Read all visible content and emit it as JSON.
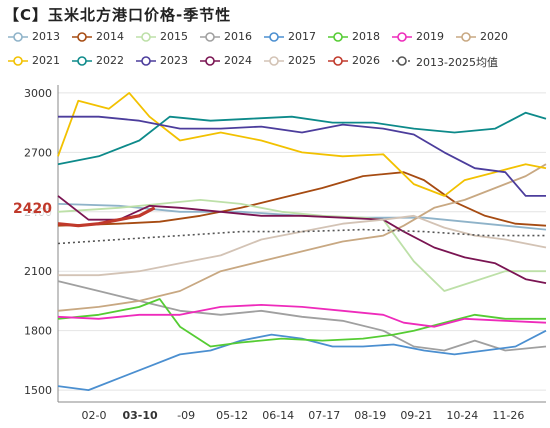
{
  "title": "【C】玉米北方港口价格-季节性",
  "colors": {
    "2013": "#8fb3c9",
    "2014": "#a64b12",
    "2015": "#bde0a8",
    "2016": "#a0a0a0",
    "2017": "#4b8fd0",
    "2018": "#55cc33",
    "2019": "#ee2bbb",
    "2020": "#c8a882",
    "2021": "#f2c100",
    "2022": "#0d8a8a",
    "2023": "#4c3d9c",
    "2024": "#7a1452",
    "2025": "#d3c3b5",
    "2026": "#c0392b",
    "2013-2025均值": "#555555"
  },
  "highlights": {
    "value_label": "2420",
    "date_label": "03-10"
  },
  "chart_data": {
    "type": "line",
    "x_ticks": [
      "02-0",
      "03-10",
      "-09",
      "05-12",
      "06-14",
      "07-17",
      "08-19",
      "09-21",
      "10-24",
      "11-26"
    ],
    "y_ticks": [
      1500,
      1800,
      2100,
      2400,
      2700,
      3000
    ],
    "ylim": [
      1450,
      3040
    ],
    "x_domain": [
      0,
      48
    ],
    "grid": true,
    "legend_position": "top",
    "series": [
      {
        "name": "2013",
        "style": "solid",
        "points": [
          [
            0,
            2440
          ],
          [
            6,
            2430
          ],
          [
            12,
            2400
          ],
          [
            18,
            2400
          ],
          [
            24,
            2380
          ],
          [
            30,
            2370
          ],
          [
            36,
            2370
          ],
          [
            40,
            2350
          ],
          [
            44,
            2330
          ],
          [
            48,
            2310
          ]
        ]
      },
      {
        "name": "2014",
        "style": "solid",
        "points": [
          [
            0,
            2330
          ],
          [
            6,
            2340
          ],
          [
            10,
            2350
          ],
          [
            14,
            2380
          ],
          [
            18,
            2420
          ],
          [
            22,
            2470
          ],
          [
            26,
            2520
          ],
          [
            30,
            2580
          ],
          [
            34,
            2600
          ],
          [
            36,
            2560
          ],
          [
            39,
            2450
          ],
          [
            42,
            2380
          ],
          [
            45,
            2340
          ],
          [
            48,
            2330
          ]
        ]
      },
      {
        "name": "2015",
        "style": "solid",
        "points": [
          [
            0,
            2400
          ],
          [
            6,
            2420
          ],
          [
            10,
            2440
          ],
          [
            14,
            2460
          ],
          [
            18,
            2440
          ],
          [
            22,
            2400
          ],
          [
            26,
            2380
          ],
          [
            30,
            2370
          ],
          [
            32,
            2360
          ],
          [
            35,
            2150
          ],
          [
            38,
            2000
          ],
          [
            41,
            2050
          ],
          [
            44,
            2100
          ],
          [
            48,
            2100
          ]
        ]
      },
      {
        "name": "2016",
        "style": "solid",
        "points": [
          [
            0,
            2050
          ],
          [
            4,
            2000
          ],
          [
            8,
            1950
          ],
          [
            12,
            1900
          ],
          [
            16,
            1880
          ],
          [
            20,
            1900
          ],
          [
            24,
            1870
          ],
          [
            28,
            1850
          ],
          [
            32,
            1800
          ],
          [
            35,
            1720
          ],
          [
            38,
            1700
          ],
          [
            41,
            1750
          ],
          [
            44,
            1700
          ],
          [
            48,
            1720
          ]
        ]
      },
      {
        "name": "2017",
        "style": "solid",
        "points": [
          [
            0,
            1520
          ],
          [
            3,
            1500
          ],
          [
            6,
            1560
          ],
          [
            9,
            1620
          ],
          [
            12,
            1680
          ],
          [
            15,
            1700
          ],
          [
            18,
            1750
          ],
          [
            21,
            1780
          ],
          [
            24,
            1760
          ],
          [
            27,
            1720
          ],
          [
            30,
            1720
          ],
          [
            33,
            1730
          ],
          [
            36,
            1700
          ],
          [
            39,
            1680
          ],
          [
            42,
            1700
          ],
          [
            45,
            1720
          ],
          [
            48,
            1800
          ]
        ]
      },
      {
        "name": "2018",
        "style": "solid",
        "points": [
          [
            0,
            1860
          ],
          [
            4,
            1880
          ],
          [
            8,
            1920
          ],
          [
            10,
            1960
          ],
          [
            12,
            1820
          ],
          [
            15,
            1720
          ],
          [
            18,
            1740
          ],
          [
            22,
            1760
          ],
          [
            26,
            1750
          ],
          [
            30,
            1760
          ],
          [
            33,
            1780
          ],
          [
            35,
            1800
          ],
          [
            38,
            1840
          ],
          [
            41,
            1880
          ],
          [
            44,
            1860
          ],
          [
            48,
            1860
          ]
        ]
      },
      {
        "name": "2019",
        "style": "solid",
        "points": [
          [
            0,
            1870
          ],
          [
            4,
            1860
          ],
          [
            8,
            1880
          ],
          [
            12,
            1880
          ],
          [
            16,
            1920
          ],
          [
            20,
            1930
          ],
          [
            24,
            1920
          ],
          [
            28,
            1900
          ],
          [
            32,
            1880
          ],
          [
            34,
            1840
          ],
          [
            37,
            1820
          ],
          [
            40,
            1860
          ],
          [
            44,
            1850
          ],
          [
            48,
            1840
          ]
        ]
      },
      {
        "name": "2020",
        "style": "solid",
        "points": [
          [
            0,
            1900
          ],
          [
            4,
            1920
          ],
          [
            8,
            1950
          ],
          [
            12,
            2000
          ],
          [
            16,
            2100
          ],
          [
            20,
            2150
          ],
          [
            24,
            2200
          ],
          [
            28,
            2250
          ],
          [
            32,
            2280
          ],
          [
            34,
            2330
          ],
          [
            37,
            2420
          ],
          [
            40,
            2460
          ],
          [
            43,
            2520
          ],
          [
            46,
            2580
          ],
          [
            48,
            2640
          ]
        ]
      },
      {
        "name": "2021",
        "style": "solid",
        "points": [
          [
            0,
            2680
          ],
          [
            2,
            2960
          ],
          [
            5,
            2920
          ],
          [
            7,
            3000
          ],
          [
            9,
            2880
          ],
          [
            12,
            2760
          ],
          [
            16,
            2800
          ],
          [
            20,
            2760
          ],
          [
            24,
            2700
          ],
          [
            28,
            2680
          ],
          [
            32,
            2690
          ],
          [
            35,
            2540
          ],
          [
            38,
            2480
          ],
          [
            40,
            2560
          ],
          [
            43,
            2600
          ],
          [
            46,
            2640
          ],
          [
            48,
            2620
          ]
        ]
      },
      {
        "name": "2022",
        "style": "solid",
        "points": [
          [
            0,
            2640
          ],
          [
            4,
            2680
          ],
          [
            8,
            2760
          ],
          [
            11,
            2880
          ],
          [
            15,
            2860
          ],
          [
            19,
            2870
          ],
          [
            23,
            2880
          ],
          [
            27,
            2850
          ],
          [
            31,
            2850
          ],
          [
            35,
            2820
          ],
          [
            39,
            2800
          ],
          [
            43,
            2820
          ],
          [
            46,
            2900
          ],
          [
            48,
            2870
          ]
        ]
      },
      {
        "name": "2023",
        "style": "solid",
        "points": [
          [
            0,
            2880
          ],
          [
            4,
            2880
          ],
          [
            8,
            2860
          ],
          [
            12,
            2820
          ],
          [
            16,
            2820
          ],
          [
            20,
            2830
          ],
          [
            24,
            2800
          ],
          [
            28,
            2840
          ],
          [
            32,
            2820
          ],
          [
            35,
            2790
          ],
          [
            38,
            2700
          ],
          [
            41,
            2620
          ],
          [
            44,
            2600
          ],
          [
            46,
            2480
          ],
          [
            48,
            2480
          ]
        ]
      },
      {
        "name": "2024",
        "style": "solid",
        "points": [
          [
            0,
            2480
          ],
          [
            3,
            2360
          ],
          [
            6,
            2360
          ],
          [
            9,
            2430
          ],
          [
            12,
            2420
          ],
          [
            16,
            2400
          ],
          [
            20,
            2380
          ],
          [
            24,
            2380
          ],
          [
            28,
            2370
          ],
          [
            32,
            2360
          ],
          [
            34,
            2300
          ],
          [
            37,
            2220
          ],
          [
            40,
            2170
          ],
          [
            43,
            2140
          ],
          [
            46,
            2060
          ],
          [
            48,
            2040
          ]
        ]
      },
      {
        "name": "2025",
        "style": "solid",
        "points": [
          [
            0,
            2080
          ],
          [
            4,
            2080
          ],
          [
            8,
            2100
          ],
          [
            12,
            2140
          ],
          [
            16,
            2180
          ],
          [
            20,
            2260
          ],
          [
            24,
            2300
          ],
          [
            28,
            2340
          ],
          [
            32,
            2360
          ],
          [
            35,
            2380
          ],
          [
            38,
            2320
          ],
          [
            41,
            2280
          ],
          [
            44,
            2260
          ],
          [
            48,
            2220
          ]
        ]
      },
      {
        "name": "2026",
        "style": "solid",
        "points": [
          [
            0,
            2340
          ],
          [
            2,
            2330
          ],
          [
            4,
            2340
          ],
          [
            6,
            2360
          ],
          [
            8,
            2380
          ],
          [
            9.5,
            2420
          ]
        ]
      },
      {
        "name": "2013-2025均值",
        "style": "dotted",
        "points": [
          [
            0,
            2240
          ],
          [
            6,
            2260
          ],
          [
            12,
            2280
          ],
          [
            18,
            2300
          ],
          [
            24,
            2300
          ],
          [
            30,
            2310
          ],
          [
            36,
            2300
          ],
          [
            42,
            2280
          ],
          [
            48,
            2280
          ]
        ]
      }
    ]
  },
  "legend": [
    {
      "name": "2013",
      "label": "2013"
    },
    {
      "name": "2014",
      "label": "2014"
    },
    {
      "name": "2015",
      "label": "2015"
    },
    {
      "name": "2016",
      "label": "2016"
    },
    {
      "name": "2017",
      "label": "2017"
    },
    {
      "name": "2018",
      "label": "2018"
    },
    {
      "name": "2019",
      "label": "2019"
    },
    {
      "name": "2020",
      "label": "2020"
    },
    {
      "name": "2021",
      "label": "2021"
    },
    {
      "name": "2022",
      "label": "2022"
    },
    {
      "name": "2023",
      "label": "2023"
    },
    {
      "name": "2024",
      "label": "2024"
    },
    {
      "name": "2025",
      "label": "2025"
    },
    {
      "name": "2026",
      "label": "2026"
    },
    {
      "name": "2013-2025均值",
      "label": "2013-2025均值"
    }
  ]
}
